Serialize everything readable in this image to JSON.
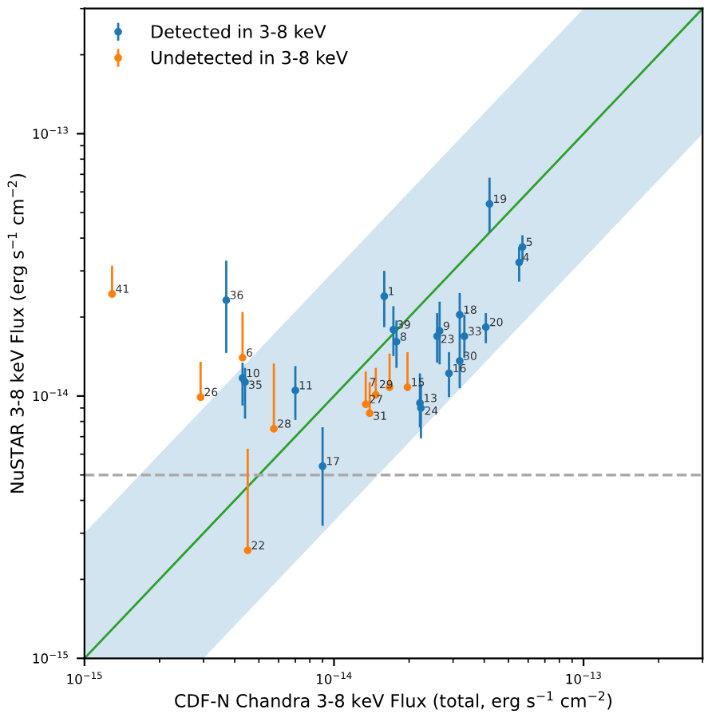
{
  "chart_data": {
    "type": "scatter",
    "xlabel": "CDF-N Chandra 3-8 keV Flux (total, erg s$^{−1}$ cm$^{−2}$)",
    "ylabel": "NuSTAR 3-8 keV Flux (erg s$^{−1}$ cm$^{−2}$)",
    "log": "xy",
    "xlim": [
      1e-15,
      3e-13
    ],
    "ylim": [
      1e-15,
      3e-13
    ],
    "xticks": [
      {
        "value": 1e-15,
        "label": "10$^{−15}$"
      },
      {
        "value": 1e-14,
        "label": "10$^{−14}$"
      },
      {
        "value": 1e-13,
        "label": "10$^{−13}$"
      }
    ],
    "yticks": [
      {
        "value": 1e-15,
        "label": "10$^{−15}$"
      },
      {
        "value": 1e-14,
        "label": "10$^{−14}$"
      },
      {
        "value": 1e-13,
        "label": "10$^{−13}$"
      }
    ],
    "grid": false,
    "legend": "top left",
    "marker": "circle",
    "ref_lines": [
      {
        "axis": "y",
        "value": 5e-15,
        "color": "#aaaaaa",
        "line_style": "dashed"
      }
    ],
    "series": [
      {
        "type": "line",
        "color": "#2ca02c",
        "marker": "none",
        "x": [
          1e-15,
          3e-15,
          1e-13,
          3e-13
        ],
        "values": [
          1e-15,
          3e-15,
          1e-13,
          3e-13
        ],
        "lower": [
          1e-15,
          1e-15,
          3.33e-14,
          1e-13
        ],
        "upper": [
          3e-15,
          9e-15,
          3e-13,
          3e-13
        ]
      },
      {
        "name": "Detected in 3-8 keV",
        "color": "#1f77b4",
        "x": [
          3.7e-15,
          4.3e-15,
          4.4e-15,
          7e-15,
          9e-15,
          1.59e-14,
          1.73e-14,
          1.78e-14,
          2.65e-14,
          2.59e-14,
          3.19e-14,
          3.33e-14,
          4.06e-14,
          3.19e-14,
          2.89e-14,
          2.21e-14,
          2.23e-14,
          4.2e-14,
          5.69e-14,
          5.52e-14
        ],
        "values": [
          2.32e-14,
          1.17e-14,
          1.13e-14,
          1.05e-14,
          5.4e-15,
          2.4e-14,
          1.79e-14,
          1.61e-14,
          1.77e-14,
          1.69e-14,
          2.04e-14,
          1.69e-14,
          1.83e-14,
          1.36e-14,
          1.22e-14,
          9.4e-15,
          9e-15,
          5.4e-14,
          3.7e-14,
          3.23e-14
        ],
        "errors": [
          [
            1.46e-14,
            3.28e-14
          ],
          [
            9.2e-15,
            1.34e-14
          ],
          [
            8.2e-15,
            1.28e-14
          ],
          [
            8.1e-15,
            1.3e-14
          ],
          [
            3.2e-15,
            7.6e-15
          ],
          [
            1.83e-14,
            3e-14
          ],
          [
            1.42e-14,
            2.2e-14
          ],
          [
            1.28e-14,
            1.94e-14
          ],
          [
            1.32e-14,
            2.29e-14
          ],
          [
            1.34e-14,
            2.07e-14
          ],
          [
            1.61e-14,
            2.47e-14
          ],
          [
            1.4e-14,
            2.04e-14
          ],
          [
            1.59e-14,
            2.07e-14
          ],
          [
            1.07e-14,
            1.61e-14
          ],
          [
            9.9e-15,
            1.47e-14
          ],
          [
            7.6e-15,
            1.22e-14
          ],
          [
            6.9e-15,
            1.11e-14
          ],
          [
            4.2e-14,
            6.8e-14
          ],
          [
            3.25e-14,
            4.1e-14
          ],
          [
            2.73e-14,
            3.7e-14
          ]
        ]
      },
      {
        "name": "Undetected in 3-8 keV",
        "color": "#ff7f0e",
        "x": [
          1.29e-15,
          4.3e-15,
          2.92e-15,
          5.74e-15,
          4.51e-15,
          1.34e-14,
          1.39e-14,
          1.47e-14,
          1.67e-14,
          1.97e-14
        ],
        "values": [
          2.45e-14,
          1.4e-14,
          9.9e-15,
          7.5e-15,
          2.58e-15,
          9.3e-15,
          8.6e-15,
          1.01e-14,
          1.08e-14,
          1.08e-14
        ],
        "errors": [
          [
            2.45e-14,
            3.14e-14
          ],
          [
            1.4e-14,
            2.09e-14
          ],
          [
            9.9e-15,
            1.35e-14
          ],
          [
            7.5e-15,
            1.33e-14
          ],
          [
            2.58e-15,
            6.3e-15
          ],
          [
            9.3e-15,
            1.24e-14
          ],
          [
            8.6e-15,
            1.13e-14
          ],
          [
            1.01e-14,
            1.28e-14
          ],
          [
            1.08e-14,
            1.45e-14
          ],
          [
            1.08e-14,
            1.47e-14
          ]
        ]
      }
    ],
    "annotations": [
      {
        "text": "36",
        "x": 3.7e-15,
        "y": 2.32e-14
      },
      {
        "text": "10",
        "x": 4.3e-15,
        "y": 1.17e-14
      },
      {
        "text": "35",
        "x": 4.4e-15,
        "y": 1.13e-14
      },
      {
        "text": "11",
        "x": 7e-15,
        "y": 1.05e-14
      },
      {
        "text": "17",
        "x": 9e-15,
        "y": 5.4e-15
      },
      {
        "text": "1",
        "x": 1.59e-14,
        "y": 2.4e-14
      },
      {
        "text": "39",
        "x": 1.73e-14,
        "y": 1.79e-14
      },
      {
        "text": "8",
        "x": 1.78e-14,
        "y": 1.61e-14
      },
      {
        "text": "9",
        "x": 2.65e-14,
        "y": 1.77e-14
      },
      {
        "text": "23",
        "x": 2.59e-14,
        "y": 1.69e-14
      },
      {
        "text": "18",
        "x": 3.19e-14,
        "y": 2.04e-14
      },
      {
        "text": "33",
        "x": 3.33e-14,
        "y": 1.69e-14
      },
      {
        "text": "20",
        "x": 4.06e-14,
        "y": 1.83e-14
      },
      {
        "text": "30",
        "x": 3.19e-14,
        "y": 1.36e-14
      },
      {
        "text": "16",
        "x": 2.89e-14,
        "y": 1.22e-14
      },
      {
        "text": "13",
        "x": 2.21e-14,
        "y": 9.4e-15
      },
      {
        "text": "24",
        "x": 2.23e-14,
        "y": 9e-15
      },
      {
        "text": "19",
        "x": 4.2e-14,
        "y": 5.4e-14
      },
      {
        "text": "5",
        "x": 5.69e-14,
        "y": 3.7e-14
      },
      {
        "text": "4",
        "x": 5.52e-14,
        "y": 3.23e-14
      },
      {
        "text": "41",
        "x": 1.29e-15,
        "y": 2.45e-14
      },
      {
        "text": "6",
        "x": 4.3e-15,
        "y": 1.4e-14
      },
      {
        "text": "26",
        "x": 2.92e-15,
        "y": 9.9e-15
      },
      {
        "text": "28",
        "x": 5.74e-15,
        "y": 7.5e-15
      },
      {
        "text": "22",
        "x": 4.51e-15,
        "y": 2.58e-15
      },
      {
        "text": "27",
        "x": 1.34e-14,
        "y": 9.3e-15
      },
      {
        "text": "31",
        "x": 1.39e-14,
        "y": 8.6e-15
      },
      {
        "text": "29",
        "x": 1.47e-14,
        "y": 1.01e-14
      },
      {
        "text": "7",
        "x": 1.67e-14,
        "y": 1.08e-14
      },
      {
        "text": "15",
        "x": 1.97e-14,
        "y": 1.08e-14
      }
    ]
  }
}
